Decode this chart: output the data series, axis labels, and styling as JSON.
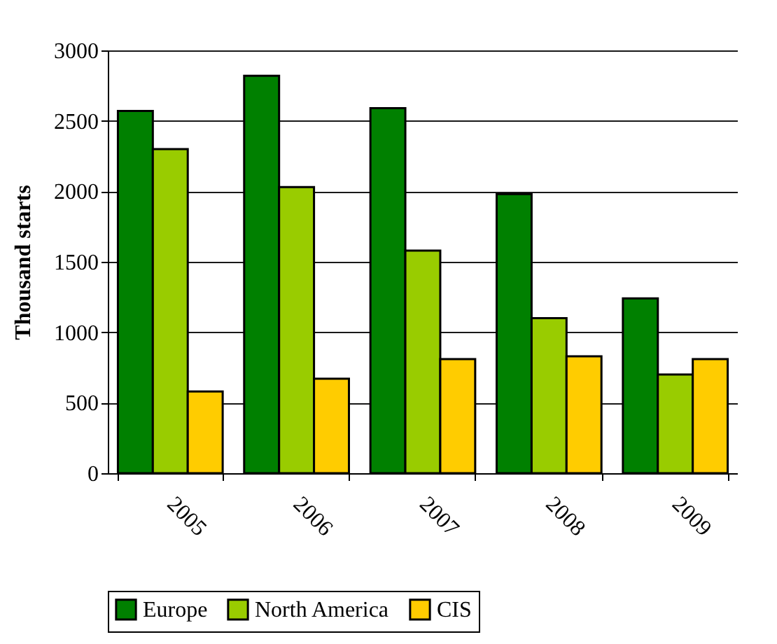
{
  "chart_data": {
    "type": "bar",
    "ylabel": "Thousand starts",
    "categories": [
      "2005",
      "2006",
      "2007",
      "2008",
      "2009"
    ],
    "series": [
      {
        "name": "Europe",
        "color": "#008000",
        "values": [
          2570,
          2820,
          2590,
          1980,
          1240
        ]
      },
      {
        "name": "North America",
        "color": "#99cc00",
        "values": [
          2300,
          2030,
          1580,
          1100,
          700
        ]
      },
      {
        "name": "CIS",
        "color": "#ffcc00",
        "values": [
          580,
          670,
          810,
          830,
          810
        ]
      }
    ],
    "ylim": [
      0,
      3000
    ],
    "yticks": [
      0,
      500,
      1000,
      1500,
      2000,
      2500,
      3000
    ],
    "grid": "y",
    "legend": "bottom"
  }
}
